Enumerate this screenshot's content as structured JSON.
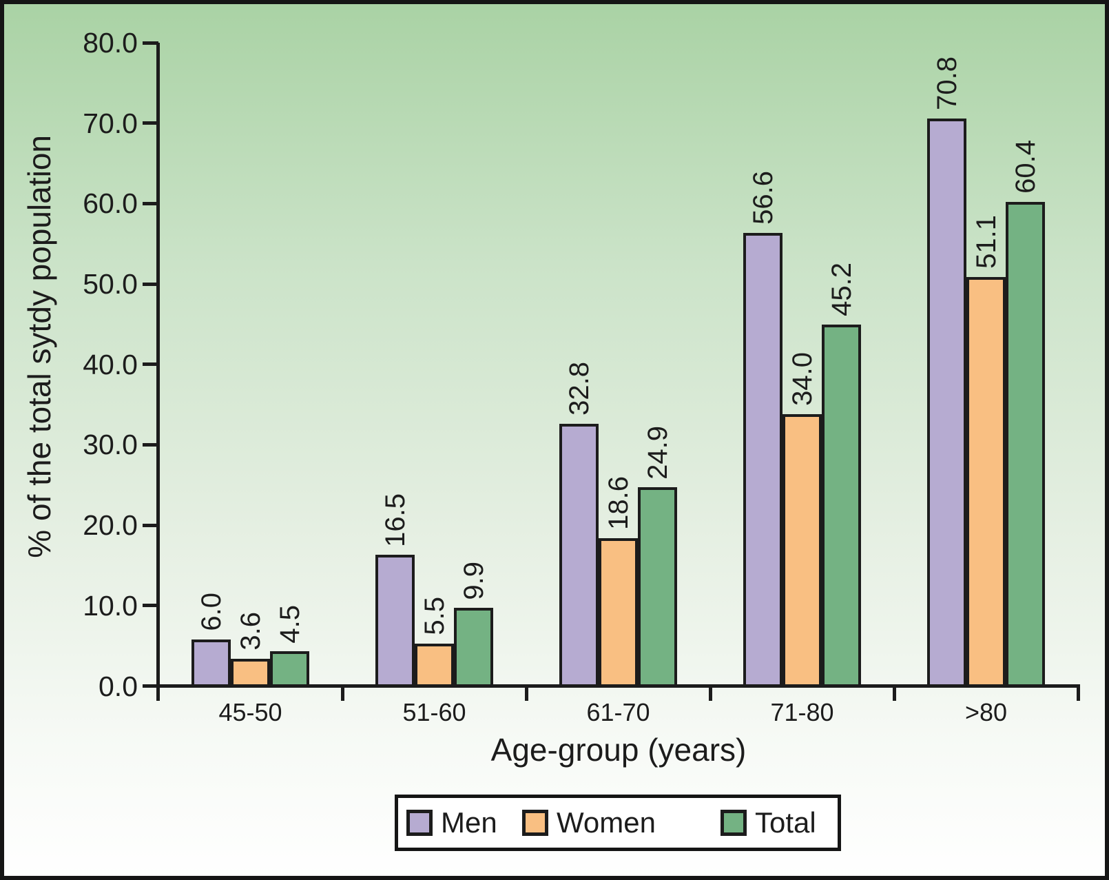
{
  "chart_data": {
    "type": "bar",
    "title": "",
    "xlabel": "Age-group (years)",
    "ylabel": "% of the total sytdy population",
    "categories": [
      "45-50",
      "51-60",
      "61-70",
      "71-80",
      ">80"
    ],
    "series": [
      {
        "name": "Men",
        "color": "#b6abd1",
        "values": [
          6.0,
          16.5,
          32.8,
          56.6,
          70.8
        ],
        "value_labels": [
          "6.0",
          "16.5",
          "32.8",
          "56.6",
          "70.8"
        ]
      },
      {
        "name": "Women",
        "color": "#f9bf82",
        "values": [
          3.6,
          5.5,
          18.6,
          34.0,
          51.1
        ],
        "value_labels": [
          "3.6",
          "5.5",
          "18.6",
          "34.0",
          "51.1"
        ]
      },
      {
        "name": "Total",
        "color": "#74b283",
        "values": [
          4.5,
          9.9,
          24.9,
          45.2,
          60.4
        ],
        "value_labels": [
          "4.5",
          "9.9",
          "24.9",
          "45.2",
          "60.4"
        ]
      }
    ],
    "ylim": [
      0,
      80
    ],
    "ytick_step": 10,
    "ytick_labels": [
      "0.0",
      "10.0",
      "20.0",
      "30.0",
      "40.0",
      "50.0",
      "60.0",
      "70.0",
      "80.0"
    ],
    "grid": false,
    "legend_position": "bottom",
    "value_labels_rotated": true
  },
  "colors": {
    "ink": "#1c1c1c",
    "frame": "#151515",
    "background_top": "#a9d2a4",
    "background_bottom": "#ffffff",
    "legend_background": "#ffffff",
    "men": "#b6abd1",
    "women": "#f9bf82",
    "total": "#74b283"
  }
}
